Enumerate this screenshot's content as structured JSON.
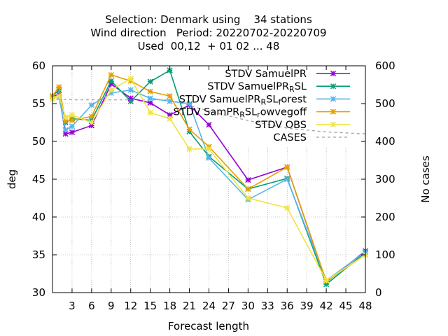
{
  "chart_data": {
    "type": "line",
    "title_lines": [
      "Selection: Denmark using    34 stations",
      "Wind direction   Period: 20220702-20220709",
      "Used  00,12  + 01 02 ... 48"
    ],
    "xlabel": "Forecast length",
    "ylabel": "deg",
    "y2label": "No cases",
    "xlim": [
      0,
      48
    ],
    "ylim": [
      30,
      60
    ],
    "y2lim": [
      0,
      600
    ],
    "x_ticks": [
      3,
      6,
      9,
      12,
      15,
      18,
      21,
      24,
      27,
      30,
      33,
      36,
      39,
      42,
      45,
      48
    ],
    "y_ticks": [
      30,
      35,
      40,
      45,
      50,
      55,
      60
    ],
    "y2_ticks": [
      0,
      100,
      200,
      300,
      400,
      500,
      600
    ],
    "grid": true,
    "legend_position": "top-right",
    "series": [
      {
        "name": "STDV SamuelPR",
        "legend_parts": [
          [
            "STDV SamuelPR",
            ""
          ]
        ],
        "color": "#9400d3",
        "x": [
          0,
          1,
          2,
          3,
          6,
          9,
          12,
          15,
          18,
          21,
          24,
          30,
          36,
          42,
          48
        ],
        "y": [
          56.0,
          56.2,
          51.0,
          51.2,
          52.1,
          57.6,
          55.7,
          55.1,
          53.5,
          54.8,
          52.2,
          44.9,
          46.6,
          31.4,
          35.5
        ]
      },
      {
        "name": "STDV SamuelPR_RSL",
        "legend_parts": [
          [
            "STDV SamuelPR",
            ""
          ],
          [
            "R",
            "sub"
          ],
          [
            "SL",
            ""
          ]
        ],
        "color": "#009e73",
        "x": [
          0,
          1,
          2,
          3,
          6,
          9,
          12,
          15,
          18,
          21,
          24,
          30,
          36,
          42,
          48
        ],
        "y": [
          56.0,
          56.8,
          52.5,
          53.0,
          52.8,
          58.0,
          55.3,
          57.9,
          59.4,
          51.3,
          48.0,
          43.7,
          45.1,
          31.1,
          35.3
        ]
      },
      {
        "name": "STDV SamuelPR_RSL_forest",
        "legend_parts": [
          [
            "STDV SamuelPR",
            ""
          ],
          [
            "R",
            "sub"
          ],
          [
            "SL",
            ""
          ],
          [
            "f",
            "sub"
          ],
          [
            "orest",
            ""
          ]
        ],
        "color": "#56b4e9",
        "x": [
          0,
          1,
          2,
          3,
          6,
          9,
          12,
          15,
          18,
          21,
          24,
          30,
          36,
          42,
          48
        ],
        "y": [
          56.0,
          55.8,
          51.5,
          52.0,
          54.8,
          56.4,
          56.8,
          55.7,
          55.3,
          55.0,
          47.8,
          42.3,
          45.0,
          31.6,
          35.4
        ]
      },
      {
        "name": "STDV SamPR_RSL_rowvegoff",
        "legend_parts": [
          [
            "STDV SamPR",
            ""
          ],
          [
            "R",
            "sub"
          ],
          [
            "SL",
            ""
          ],
          [
            "r",
            "sub"
          ],
          [
            "owvegoff",
            ""
          ]
        ],
        "color": "#e69f00",
        "x": [
          0,
          1,
          2,
          3,
          6,
          9,
          12,
          15,
          18,
          21,
          24,
          30,
          36,
          42,
          48
        ],
        "y": [
          56.0,
          57.2,
          52.7,
          52.8,
          53.3,
          58.8,
          58.0,
          56.6,
          56.0,
          51.6,
          49.3,
          43.7,
          46.6,
          31.5,
          35.0
        ]
      },
      {
        "name": "STDV OBS",
        "legend_parts": [
          [
            "STDV OBS",
            ""
          ]
        ],
        "color": "#f0e442",
        "x": [
          0,
          1,
          2,
          3,
          6,
          9,
          12,
          15,
          18,
          21,
          24,
          30,
          36,
          42,
          48
        ],
        "y": [
          55.6,
          56.0,
          53.2,
          53.5,
          52.5,
          56.8,
          58.3,
          53.8,
          53.0,
          49.0,
          49.0,
          42.5,
          41.2,
          31.6,
          35.0
        ]
      }
    ],
    "cases": {
      "name": "CASES",
      "axis": "y2",
      "color": "#a0a0a0",
      "x": [
        0,
        1,
        2,
        3,
        6,
        9,
        12,
        15,
        18,
        21,
        24,
        30,
        36,
        42,
        48
      ],
      "y": [
        515,
        513,
        511,
        510,
        510,
        510,
        510,
        510,
        510,
        495,
        480,
        455,
        435,
        425,
        420
      ]
    }
  }
}
